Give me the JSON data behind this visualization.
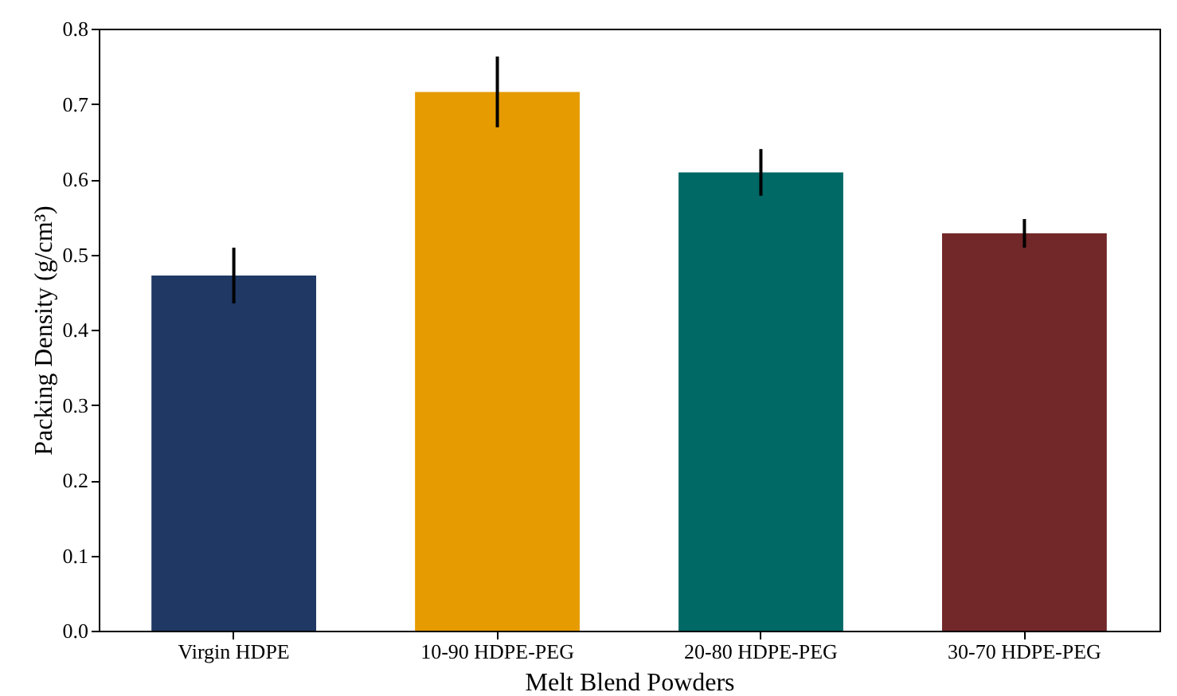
{
  "chart_data": {
    "type": "bar",
    "xlabel": "Melt Blend Powders",
    "ylabel": "Packing Density (g/cm³)",
    "categories": [
      "Virgin HDPE",
      "10-90 HDPE-PEG",
      "20-80 HDPE-PEG",
      "30-70 HDPE-PEG"
    ],
    "values": [
      0.472,
      0.716,
      0.609,
      0.528
    ],
    "errors": [
      0.037,
      0.047,
      0.031,
      0.019
    ],
    "colors": [
      "#1f3864",
      "#e69b00",
      "#006865",
      "#722729"
    ],
    "ylim": [
      0,
      0.8
    ],
    "yticks": [
      {
        "value": 0,
        "label": "0.0"
      },
      0.1,
      0.2,
      0.3,
      0.4,
      0.5,
      0.6,
      0.7,
      0.8
    ],
    "grid": false
  }
}
